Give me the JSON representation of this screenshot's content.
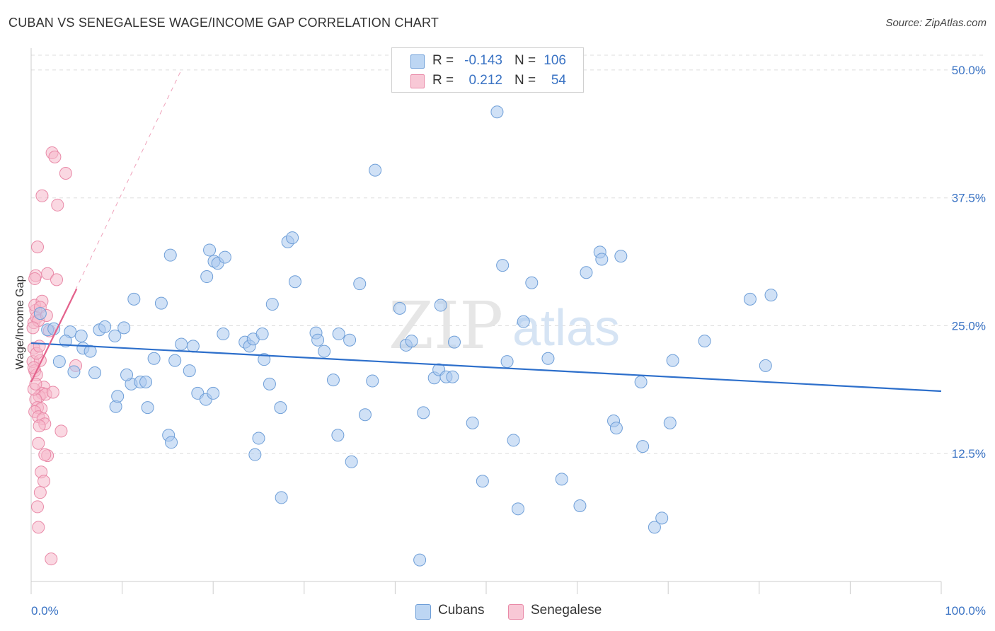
{
  "header": {
    "title": "CUBAN VS SENEGALESE WAGE/INCOME GAP CORRELATION CHART",
    "source": "Source: ZipAtlas.com"
  },
  "watermark": {
    "zip": "ZIP",
    "atlas": "atlas"
  },
  "colors": {
    "blue_fill": "#a9c8ef",
    "blue_stroke": "#6f9fd8",
    "blue_line": "#2d6fcb",
    "pink_fill": "#f5b8ca",
    "pink_stroke": "#e98aa8",
    "pink_line": "#e4628c",
    "axis_text": "#3a73c4",
    "grid": "#dddddd"
  },
  "legend": {
    "series": [
      {
        "r_label": "R =",
        "r_value": "-0.143",
        "n_label": "N =",
        "n_value": "106",
        "swatch": "blue"
      },
      {
        "r_label": "R =",
        "r_value": "0.212",
        "n_label": "N =",
        "n_value": "54",
        "swatch": "pink"
      }
    ]
  },
  "bottom_legend": {
    "items": [
      {
        "label": "Cubans",
        "swatch": "blue"
      },
      {
        "label": "Senegalese",
        "swatch": "pink"
      }
    ]
  },
  "chart_data": {
    "type": "scatter",
    "title": "CUBAN VS SENEGALESE WAGE/INCOME GAP CORRELATION CHART",
    "xlabel": "",
    "ylabel": "Wage/Income Gap",
    "xlim": [
      0,
      100
    ],
    "ylim": [
      0,
      52
    ],
    "x_tick_labels": [
      "0.0%",
      "100.0%"
    ],
    "y_ticks": [
      12.5,
      25.0,
      37.5,
      50.0
    ],
    "y_tick_labels": [
      "12.5%",
      "25.0%",
      "37.5%",
      "50.0%"
    ],
    "grid": "horizontal dashed",
    "legend_position": "top-center",
    "series": [
      {
        "name": "Cubans",
        "color": "blue",
        "R": -0.143,
        "N": 106,
        "trend": {
          "x": [
            0,
            100
          ],
          "y": [
            23.3,
            18.6
          ]
        },
        "points": [
          [
            1.0,
            26.2
          ],
          [
            1.8,
            24.6
          ],
          [
            2.5,
            24.7
          ],
          [
            4.3,
            24.4
          ],
          [
            5.5,
            24.0
          ],
          [
            7.5,
            24.6
          ],
          [
            3.1,
            21.5
          ],
          [
            3.8,
            23.5
          ],
          [
            5.7,
            22.8
          ],
          [
            4.7,
            20.5
          ],
          [
            6.5,
            22.5
          ],
          [
            7.0,
            20.4
          ],
          [
            8.1,
            24.9
          ],
          [
            9.2,
            24.0
          ],
          [
            10.2,
            24.8
          ],
          [
            11.0,
            19.3
          ],
          [
            10.5,
            20.2
          ],
          [
            9.3,
            17.1
          ],
          [
            9.5,
            18.1
          ],
          [
            11.3,
            27.6
          ],
          [
            12.0,
            19.5
          ],
          [
            12.6,
            19.5
          ],
          [
            12.8,
            17.0
          ],
          [
            13.5,
            21.8
          ],
          [
            14.3,
            27.2
          ],
          [
            15.1,
            14.3
          ],
          [
            15.3,
            31.9
          ],
          [
            15.8,
            21.6
          ],
          [
            15.4,
            13.6
          ],
          [
            16.5,
            23.2
          ],
          [
            17.4,
            20.6
          ],
          [
            17.8,
            23.0
          ],
          [
            18.3,
            18.4
          ],
          [
            19.2,
            17.8
          ],
          [
            20.0,
            18.4
          ],
          [
            19.3,
            29.8
          ],
          [
            19.6,
            32.4
          ],
          [
            20.1,
            31.3
          ],
          [
            20.5,
            31.1
          ],
          [
            21.3,
            31.7
          ],
          [
            21.1,
            24.2
          ],
          [
            23.5,
            23.4
          ],
          [
            24.0,
            23.0
          ],
          [
            24.4,
            23.7
          ],
          [
            25.6,
            21.7
          ],
          [
            25.0,
            14.0
          ],
          [
            25.4,
            24.2
          ],
          [
            26.2,
            19.3
          ],
          [
            27.4,
            17.0
          ],
          [
            28.2,
            33.2
          ],
          [
            28.7,
            33.6
          ],
          [
            29.0,
            29.3
          ],
          [
            26.5,
            27.1
          ],
          [
            27.5,
            8.2
          ],
          [
            24.6,
            12.4
          ],
          [
            31.3,
            24.3
          ],
          [
            31.5,
            23.6
          ],
          [
            32.2,
            22.5
          ],
          [
            33.2,
            19.7
          ],
          [
            33.7,
            14.3
          ],
          [
            35.2,
            11.7
          ],
          [
            35.0,
            23.6
          ],
          [
            36.1,
            29.1
          ],
          [
            36.7,
            16.3
          ],
          [
            37.5,
            19.6
          ],
          [
            37.8,
            40.2
          ],
          [
            40.5,
            26.7
          ],
          [
            41.2,
            23.1
          ],
          [
            41.8,
            23.5
          ],
          [
            42.7,
            2.1
          ],
          [
            43.1,
            16.5
          ],
          [
            44.3,
            19.9
          ],
          [
            44.8,
            20.7
          ],
          [
            45.6,
            20.0
          ],
          [
            45.0,
            27.0
          ],
          [
            46.3,
            20.0
          ],
          [
            48.5,
            15.5
          ],
          [
            49.6,
            9.8
          ],
          [
            51.2,
            45.9
          ],
          [
            51.8,
            30.9
          ],
          [
            52.3,
            21.5
          ],
          [
            53.0,
            13.8
          ],
          [
            53.5,
            7.1
          ],
          [
            54.1,
            25.4
          ],
          [
            55.0,
            29.2
          ],
          [
            56.8,
            21.8
          ],
          [
            58.3,
            10.0
          ],
          [
            60.3,
            7.4
          ],
          [
            61.0,
            30.2
          ],
          [
            62.5,
            32.2
          ],
          [
            62.7,
            31.5
          ],
          [
            64.0,
            15.7
          ],
          [
            64.8,
            31.8
          ],
          [
            64.3,
            15.0
          ],
          [
            67.0,
            19.5
          ],
          [
            67.2,
            13.2
          ],
          [
            68.5,
            5.3
          ],
          [
            69.3,
            6.2
          ],
          [
            70.2,
            15.5
          ],
          [
            70.5,
            21.6
          ],
          [
            74.0,
            23.5
          ],
          [
            79.0,
            27.6
          ],
          [
            80.7,
            21.1
          ],
          [
            81.3,
            28.0
          ],
          [
            46.5,
            23.4
          ],
          [
            33.8,
            24.2
          ]
        ]
      },
      {
        "name": "Senegalese",
        "color": "pink",
        "R": 0.212,
        "N": 54,
        "trend": {
          "x": [
            0,
            5
          ],
          "y": [
            19.5,
            28.6
          ]
        },
        "trend_extended_dashed": {
          "x": [
            0,
            16.5
          ],
          "y": [
            19.5,
            50.0
          ]
        },
        "points": [
          [
            0.3,
            25.3
          ],
          [
            0.5,
            26.5
          ],
          [
            0.4,
            27.0
          ],
          [
            0.6,
            25.8
          ],
          [
            0.8,
            25.5
          ],
          [
            0.2,
            24.8
          ],
          [
            1.2,
            27.4
          ],
          [
            1.0,
            26.8
          ],
          [
            0.5,
            29.9
          ],
          [
            0.4,
            29.6
          ],
          [
            0.7,
            32.7
          ],
          [
            1.2,
            37.7
          ],
          [
            2.3,
            41.9
          ],
          [
            2.6,
            41.5
          ],
          [
            3.8,
            39.9
          ],
          [
            2.9,
            36.8
          ],
          [
            1.8,
            30.1
          ],
          [
            2.8,
            29.5
          ],
          [
            0.3,
            22.8
          ],
          [
            0.2,
            21.5
          ],
          [
            0.4,
            20.6
          ],
          [
            0.6,
            20.2
          ],
          [
            1.0,
            21.6
          ],
          [
            0.3,
            20.9
          ],
          [
            1.4,
            19.0
          ],
          [
            1.2,
            18.4
          ],
          [
            0.9,
            18.1
          ],
          [
            1.6,
            18.3
          ],
          [
            0.5,
            17.8
          ],
          [
            0.7,
            17.0
          ],
          [
            1.1,
            16.9
          ],
          [
            0.4,
            16.6
          ],
          [
            0.8,
            16.1
          ],
          [
            1.3,
            15.9
          ],
          [
            1.5,
            15.4
          ],
          [
            0.9,
            15.2
          ],
          [
            3.3,
            14.7
          ],
          [
            0.8,
            13.5
          ],
          [
            1.8,
            12.3
          ],
          [
            1.5,
            12.4
          ],
          [
            1.1,
            10.7
          ],
          [
            1.4,
            9.8
          ],
          [
            1.0,
            8.7
          ],
          [
            0.7,
            7.3
          ],
          [
            0.8,
            5.3
          ],
          [
            2.2,
            2.2
          ],
          [
            4.9,
            21.1
          ],
          [
            2.4,
            18.5
          ],
          [
            2.0,
            24.5
          ],
          [
            0.6,
            22.3
          ],
          [
            0.3,
            18.8
          ],
          [
            1.7,
            26.0
          ],
          [
            0.9,
            23.0
          ],
          [
            0.5,
            19.3
          ]
        ]
      }
    ]
  }
}
